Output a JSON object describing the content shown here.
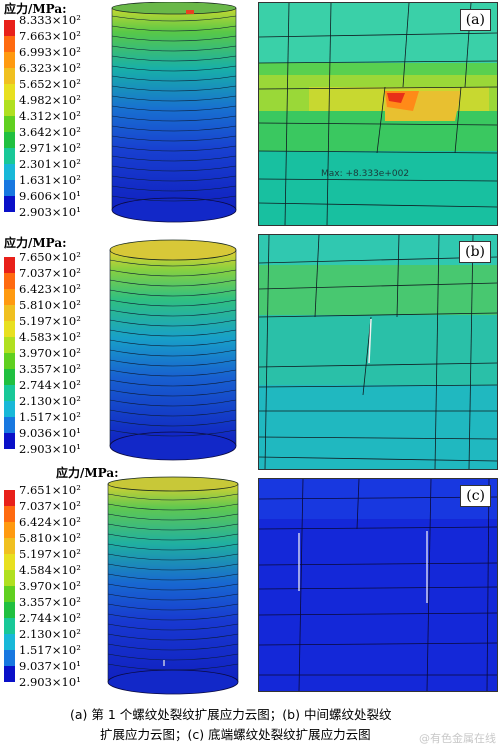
{
  "panels": [
    {
      "legend_title": "应力/MPa:",
      "legend_values": [
        "8.333×10²",
        "7.663×10²",
        "6.993×10²",
        "6.323×10²",
        "5.652×10²",
        "4.982×10²",
        "4.312×10²",
        "3.642×10²",
        "2.971×10²",
        "2.301×10²",
        "1.631×10²",
        "9.606×10¹",
        "2.903×10¹"
      ],
      "label": "(a)",
      "max_label": "Max: +8.333e+002"
    },
    {
      "legend_title": "应力/MPa:",
      "legend_values": [
        "7.650×10²",
        "7.037×10²",
        "6.423×10²",
        "5.810×10²",
        "5.197×10²",
        "4.583×10²",
        "3.970×10²",
        "3.357×10²",
        "2.744×10²",
        "2.130×10²",
        "1.517×10²",
        "9.036×10¹",
        "2.903×10¹"
      ],
      "label": "(b)"
    },
    {
      "legend_title": "应力/MPa:",
      "legend_values": [
        "7.651×10²",
        "7.037×10²",
        "6.424×10²",
        "5.810×10²",
        "5.197×10²",
        "4.584×10²",
        "3.970×10²",
        "3.357×10²",
        "2.744×10²",
        "2.130×10²",
        "1.517×10²",
        "9.037×10¹",
        "2.903×10¹"
      ],
      "label": "(c)"
    }
  ],
  "legend_colors": [
    "#e8201a",
    "#ff6a10",
    "#ff9a10",
    "#f0c020",
    "#e8e020",
    "#b0e020",
    "#60d020",
    "#20c040",
    "#18c898",
    "#18b8d8",
    "#1878e0",
    "#1838d8",
    "#0a10c8"
  ],
  "caption_line1": "(a)  第 1 个螺纹处裂纹扩展应力云图；(b)  中间螺纹处裂纹",
  "caption_line2": "扩展应力云图；(c)  底端螺纹处裂纹扩展应力云图",
  "watermark": "@有色金属在线"
}
